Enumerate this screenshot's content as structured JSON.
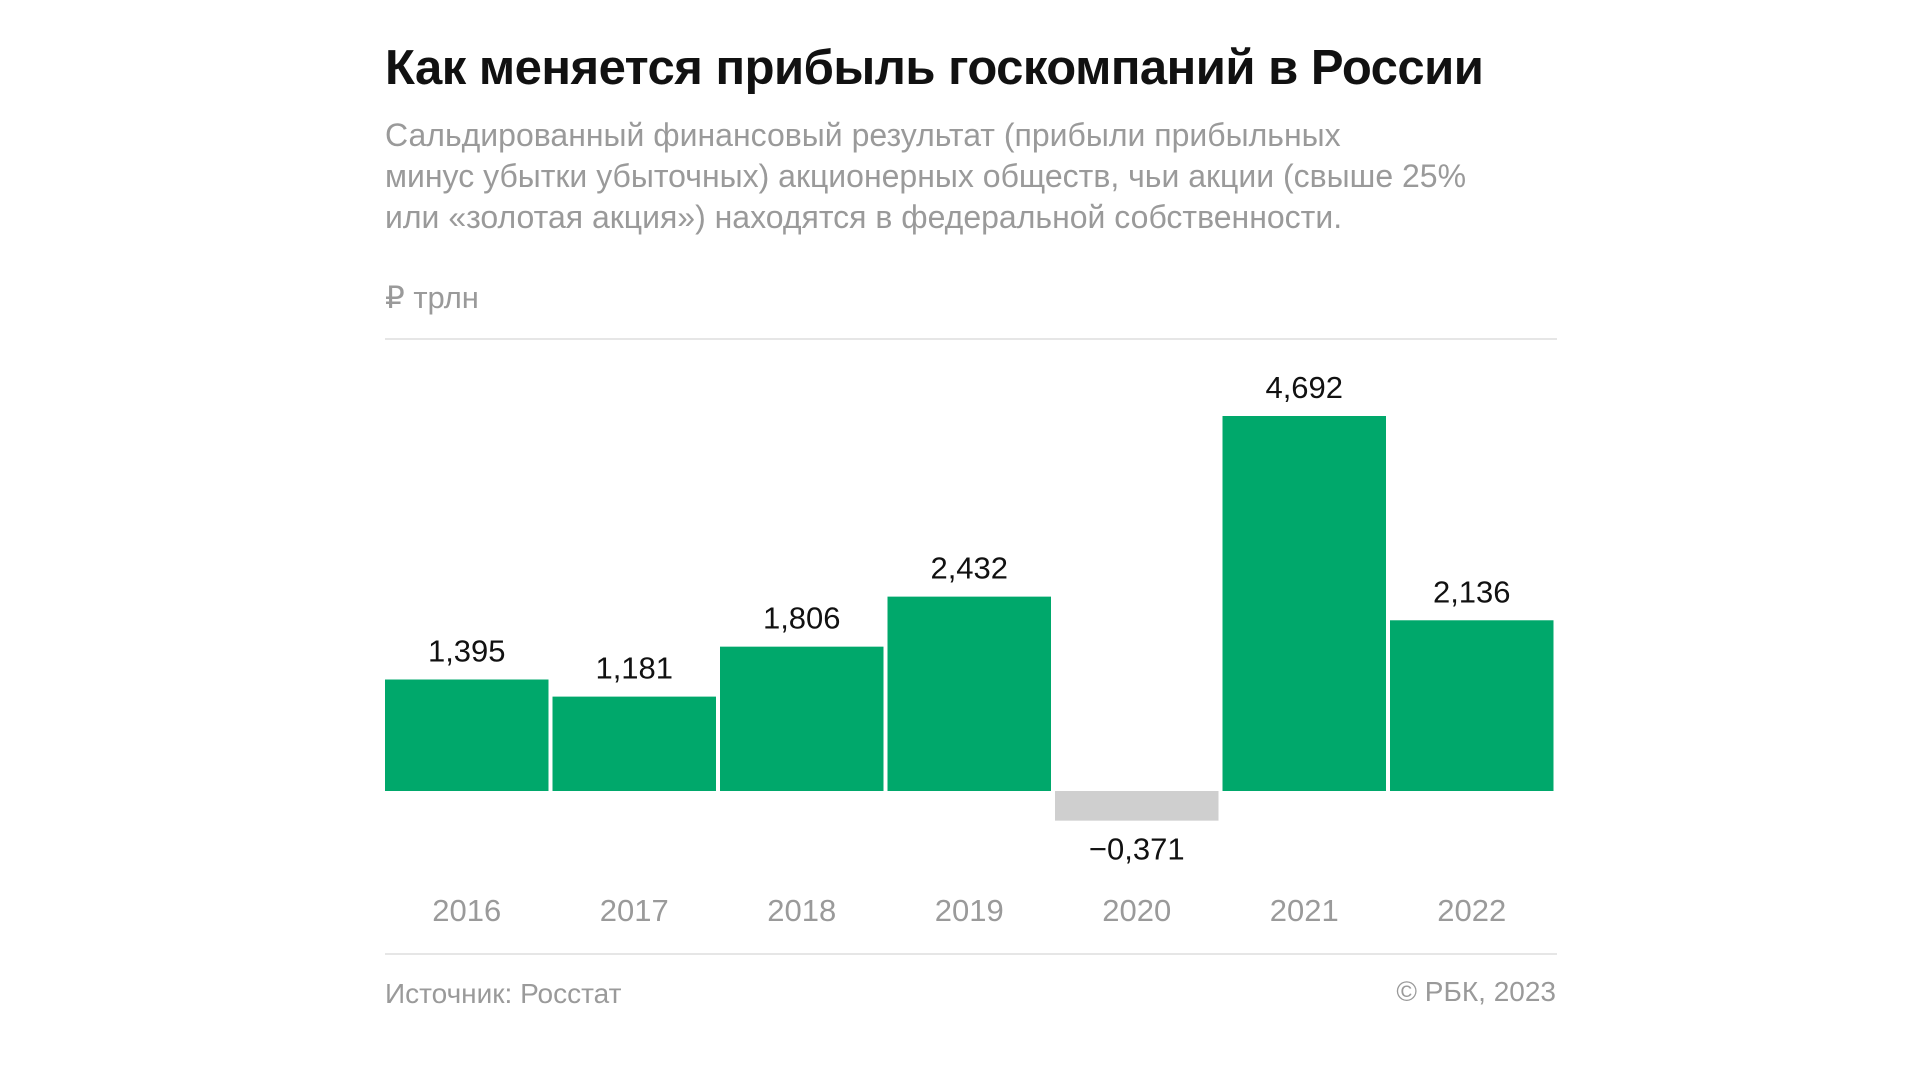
{
  "title": "Как меняется прибыль госкомпаний в России",
  "subtitle_lines": [
    "Сальдированный финансовый результат (прибыли прибыльных",
    "минус убытки убыточных) акционерных обществ, чьи акции (свыше 25%",
    "или «золотая акция») находятся в федеральной собственности."
  ],
  "unit_label": "₽ трлн",
  "source": "Источник: Росстат",
  "copyright": "© РБК, 2023",
  "colors": {
    "positive": "#00A86B",
    "negative": "#CFCFCF",
    "text": "#111111",
    "muted": "#9A9A9A"
  },
  "chart_data": {
    "type": "bar",
    "title": "Как меняется прибыль госкомпаний в России",
    "ylabel": "₽ трлн",
    "xlabel": "",
    "categories": [
      "2016",
      "2017",
      "2018",
      "2019",
      "2020",
      "2021",
      "2022"
    ],
    "values": [
      1.395,
      1.181,
      1.806,
      2.432,
      -0.371,
      4.692,
      2.136
    ],
    "value_labels": [
      "1,395",
      "1,181",
      "1,806",
      "2,432",
      "−0,371",
      "4,692",
      "2,136"
    ],
    "ylim": [
      -0.371,
      4.692
    ],
    "grid": false
  }
}
